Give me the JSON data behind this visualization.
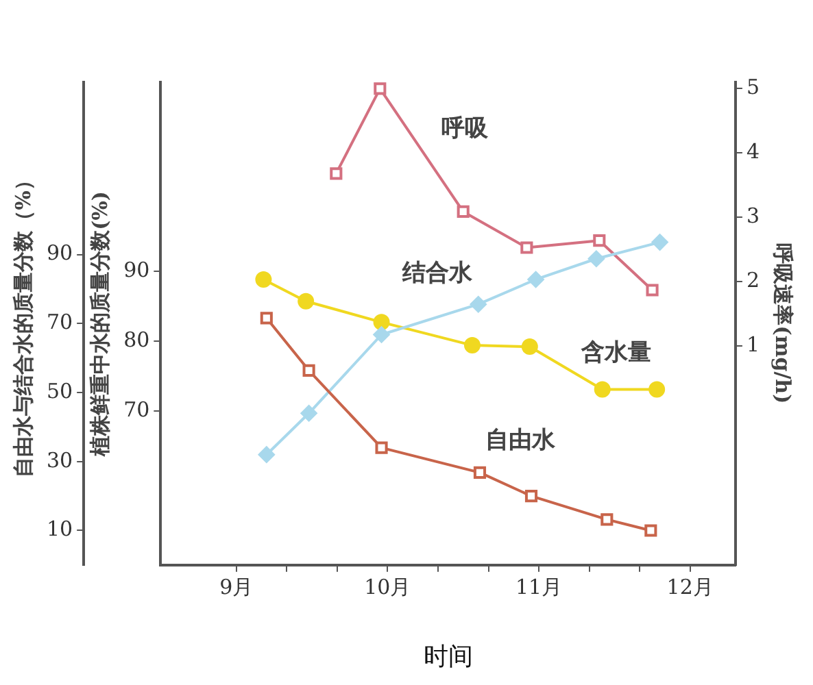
{
  "chart_data": {
    "type": "line",
    "xlabel": "时间",
    "ylabel": "自由水与结合水的质量分数（%）",
    "y2label": "植株鲜重中水的质量分数(%)",
    "y3label": "呼吸速率(mg/h)",
    "xlim": [
      8.5,
      12.3
    ],
    "xticks": [
      {
        "value": 9,
        "label": "9月"
      },
      {
        "value": 9.333,
        "label": null
      },
      {
        "value": 9.667,
        "label": null
      },
      {
        "value": 10,
        "label": "10月"
      },
      {
        "value": 10.333,
        "label": null
      },
      {
        "value": 10.667,
        "label": null
      },
      {
        "value": 11,
        "label": "11月"
      },
      {
        "value": 11.333,
        "label": null
      },
      {
        "value": 11.667,
        "label": null
      },
      {
        "value": 12,
        "label": "12月"
      }
    ],
    "ylim": [
      0,
      140
    ],
    "yticks": [
      10,
      30,
      50,
      70,
      90
    ],
    "y2lim": [
      48,
      117
    ],
    "y2ticks": [
      70,
      80,
      90
    ],
    "y3lim": [
      -2.4,
      5.1
    ],
    "y3ticks": [
      1,
      2,
      3,
      4,
      5
    ],
    "grid": false,
    "legend": false,
    "line_style": "solid",
    "series": [
      {
        "name": "自由水",
        "color": "#c8644a",
        "marker": "square",
        "x": [
          9.2,
          9.48,
          9.96,
          10.61,
          10.95,
          11.45,
          11.74
        ],
        "values": [
          71.6,
          56.4,
          34,
          26.8,
          20,
          13.2,
          10
        ]
      },
      {
        "name": "结合水",
        "color": "#a8d8ec",
        "marker": "diamond",
        "x": [
          9.2,
          9.48,
          9.96,
          10.6,
          10.98,
          11.38,
          11.8
        ],
        "values": [
          32,
          44,
          66.8,
          75.6,
          82.8,
          88.8,
          93.6
        ]
      },
      {
        "name": "含水量",
        "color": "#f0d820",
        "marker": "circle",
        "axis": "y2",
        "x": [
          9.18,
          9.46,
          9.96,
          10.56,
          10.94,
          11.42,
          11.78
        ],
        "values": [
          88.8,
          85.7,
          82.7,
          79.4,
          79.2,
          73.1,
          73.1
        ]
      },
      {
        "name": "呼吸",
        "color": "#d47080",
        "marker": "square",
        "axis": "y3",
        "x": [
          9.66,
          9.95,
          10.5,
          10.92,
          11.4,
          11.75
        ],
        "values": [
          3.68,
          5.0,
          3.09,
          2.53,
          2.64,
          1.87
        ]
      }
    ]
  }
}
